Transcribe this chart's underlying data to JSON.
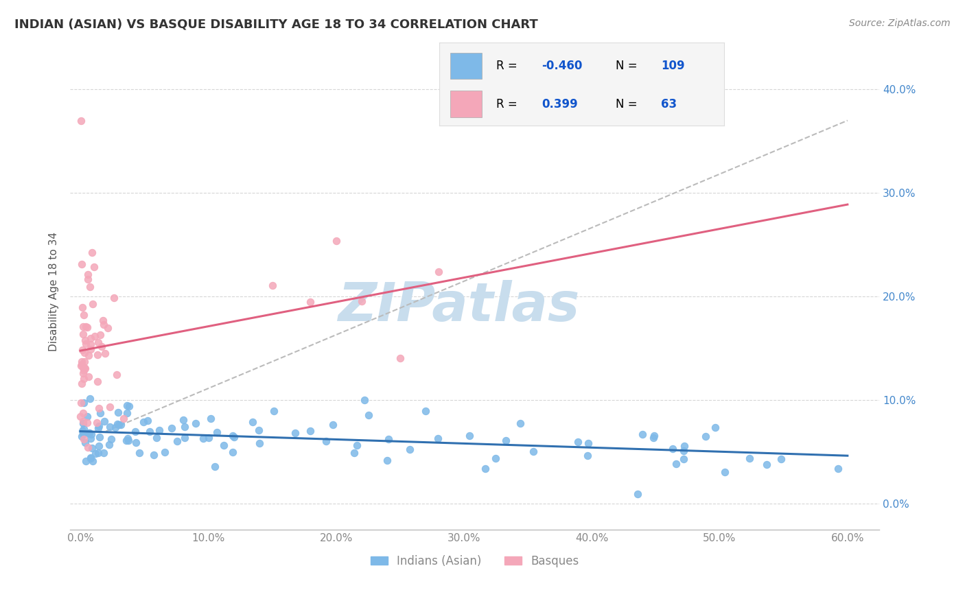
{
  "title": "INDIAN (ASIAN) VS BASQUE DISABILITY AGE 18 TO 34 CORRELATION CHART",
  "source": "Source: ZipAtlas.com",
  "ylabel": "Disability Age 18 to 34",
  "xticklabels": [
    "0.0%",
    "10.0%",
    "20.0%",
    "30.0%",
    "40.0%",
    "50.0%",
    "60.0%"
  ],
  "yticklabels": [
    "0.0%",
    "10.0%",
    "20.0%",
    "30.0%",
    "40.0%"
  ],
  "legend_R_blue": "-0.460",
  "legend_N_blue": "109",
  "legend_R_pink": "0.399",
  "legend_N_pink": "63",
  "blue_color": "#7EB9E8",
  "pink_color": "#F4A7B9",
  "blue_line_color": "#3070B0",
  "pink_line_color": "#E06080",
  "gray_dashed_color": "#BBBBBB",
  "watermark": "ZIPatlas",
  "watermark_color": "#C8DDED",
  "background_color": "#FFFFFF",
  "title_color": "#333333",
  "title_fontsize": 13,
  "axis_label_color": "#555555",
  "tick_color": "#888888",
  "legend_text_color": "#000000",
  "legend_value_color": "#1155CC",
  "legend_bg_color": "#F5F5F5",
  "right_tick_color": "#4488CC",
  "source_color": "#888888"
}
